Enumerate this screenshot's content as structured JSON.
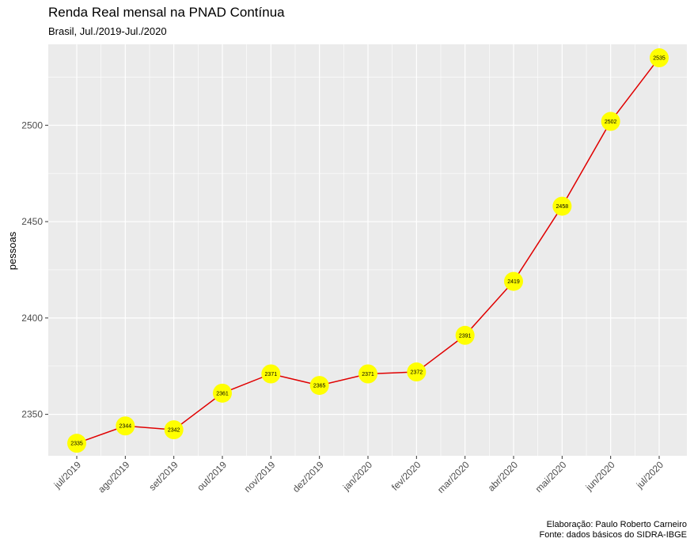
{
  "chart_data": {
    "type": "line",
    "title": "Renda Real mensal na PNAD Contínua",
    "subtitle": "Brasil, Jul./2019-Jul./2020",
    "xlabel": "",
    "ylabel": "pessoas",
    "categories": [
      "jul/2019",
      "ago/2019",
      "set/2019",
      "out/2019",
      "nov/2019",
      "dez/2019",
      "jan/2020",
      "fev/2020",
      "mar/2020",
      "abr/2020",
      "mai/2020",
      "jun/2020",
      "jul/2020"
    ],
    "values": [
      2335,
      2344,
      2342,
      2361,
      2371,
      2365,
      2371,
      2372,
      2391,
      2419,
      2458,
      2502,
      2535
    ],
    "ylim": [
      2328.5,
      2542
    ],
    "yticks": [
      2350,
      2400,
      2450,
      2500
    ],
    "grid": true,
    "line_color": "#e00000",
    "marker_color": "#ffff00",
    "panel_color": "#ebebeb",
    "caption": [
      "Elaboração: Paulo Roberto Carneiro",
      "Fonte: dados básicos do SIDRA-IBGE"
    ]
  }
}
